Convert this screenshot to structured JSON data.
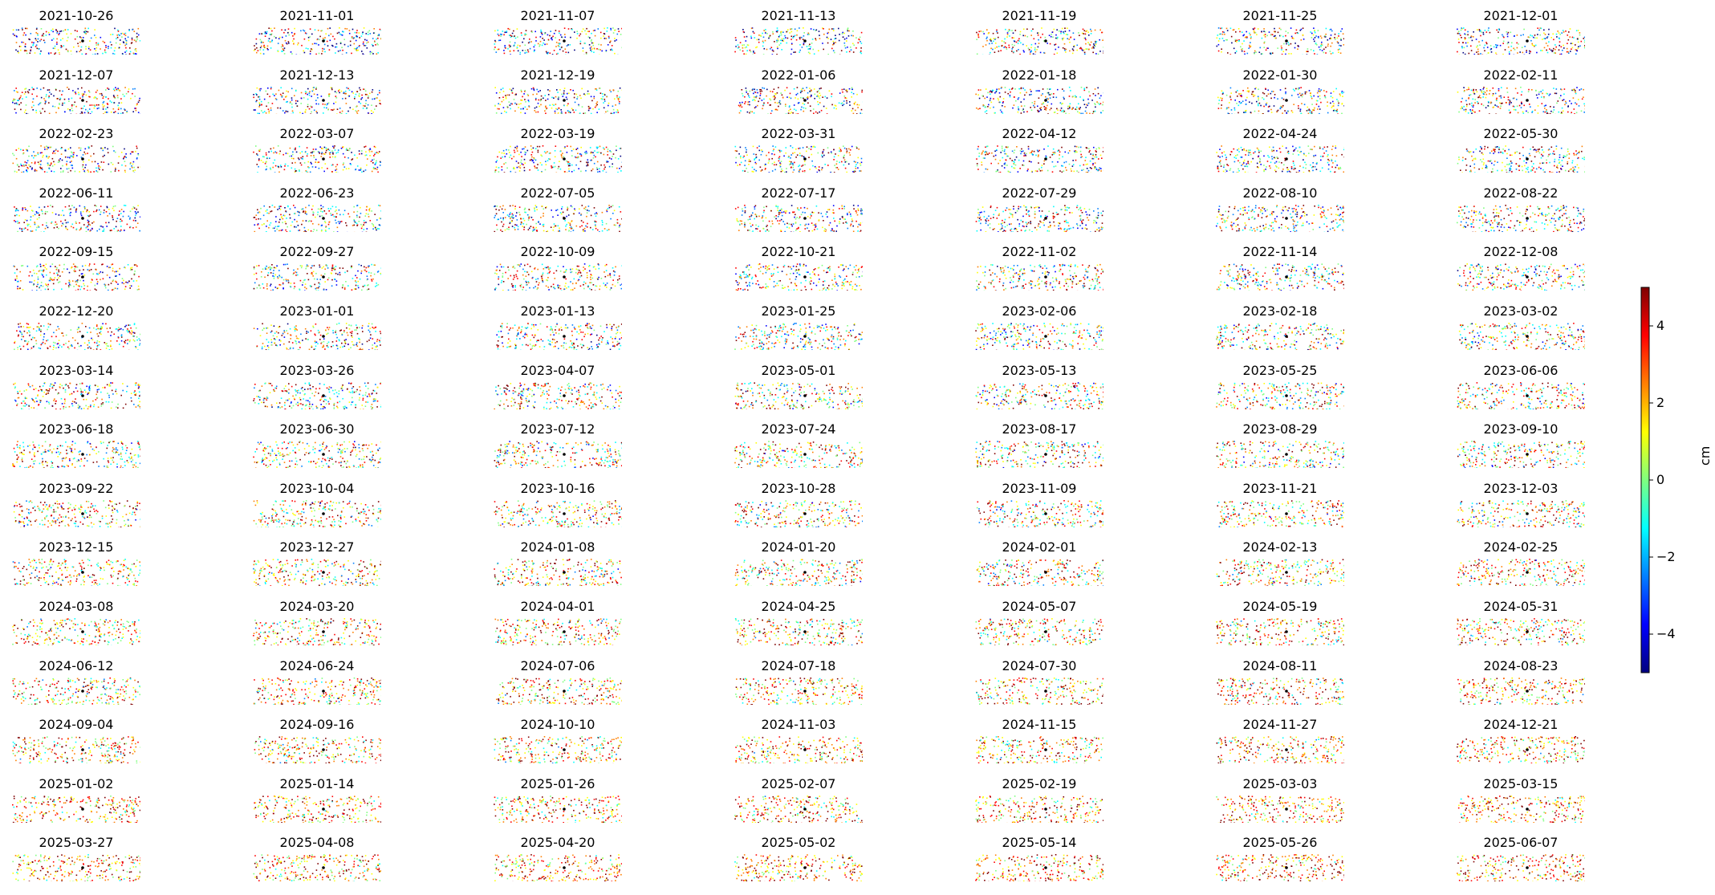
{
  "chart_data": {
    "type": "scatter",
    "description_kind": "small multiples of displacement maps",
    "panel_titles": [
      "2021-10-26",
      "2021-11-01",
      "2021-11-07",
      "2021-11-13",
      "2021-11-19",
      "2021-11-25",
      "2021-12-01",
      "2021-12-07",
      "2021-12-13",
      "2021-12-19",
      "2022-01-06",
      "2022-01-18",
      "2022-01-30",
      "2022-02-11",
      "2022-02-23",
      "2022-03-07",
      "2022-03-19",
      "2022-03-31",
      "2022-04-12",
      "2022-04-24",
      "2022-05-30",
      "2022-06-11",
      "2022-06-23",
      "2022-07-05",
      "2022-07-17",
      "2022-07-29",
      "2022-08-10",
      "2022-08-22",
      "2022-09-15",
      "2022-09-27",
      "2022-10-09",
      "2022-10-21",
      "2022-11-02",
      "2022-11-14",
      "2022-12-08",
      "2022-12-20",
      "2023-01-01",
      "2023-01-13",
      "2023-01-25",
      "2023-02-06",
      "2023-02-18",
      "2023-03-02",
      "2023-03-14",
      "2023-03-26",
      "2023-04-07",
      "2023-05-01",
      "2023-05-13",
      "2023-05-25",
      "2023-06-06",
      "2023-06-18",
      "2023-06-30",
      "2023-07-12",
      "2023-07-24",
      "2023-08-17",
      "2023-08-29",
      "2023-09-10",
      "2023-09-22",
      "2023-10-04",
      "2023-10-16",
      "2023-10-28",
      "2023-11-09",
      "2023-11-21",
      "2023-12-03",
      "2023-12-15",
      "2023-12-27",
      "2024-01-08",
      "2024-01-20",
      "2024-02-01",
      "2024-02-13",
      "2024-02-25",
      "2024-03-08",
      "2024-03-20",
      "2024-04-01",
      "2024-04-25",
      "2024-05-07",
      "2024-05-19",
      "2024-05-31",
      "2024-06-12",
      "2024-06-24",
      "2024-07-06",
      "2024-07-18",
      "2024-07-30",
      "2024-08-11",
      "2024-08-23",
      "2024-09-04",
      "2024-09-16",
      "2024-10-10",
      "2024-11-03",
      "2024-11-15",
      "2024-11-27",
      "2024-12-21",
      "2025-01-02",
      "2025-01-14",
      "2025-01-26",
      "2025-02-07",
      "2025-02-19",
      "2025-03-03",
      "2025-03-15",
      "2025-03-27",
      "2025-04-08",
      "2025-04-20",
      "2025-05-02",
      "2025-05-14",
      "2025-05-26",
      "2025-06-07"
    ],
    "colorbar": {
      "label": "cm",
      "range": [
        -5,
        5
      ],
      "ticks": [
        {
          "value": 4,
          "label": "4"
        },
        {
          "value": 2,
          "label": "2"
        },
        {
          "value": 0,
          "label": "0"
        },
        {
          "value": -2,
          "label": "−2"
        },
        {
          "value": -4,
          "label": "−4"
        }
      ],
      "colormap": "jet",
      "colormap_stops": [
        "#00007f",
        "#0000ff",
        "#007fff",
        "#00ffff",
        "#7fff7f",
        "#ffff00",
        "#ff7f00",
        "#ff0000",
        "#7f0000"
      ]
    },
    "grid": false,
    "axes_visible": false
  }
}
